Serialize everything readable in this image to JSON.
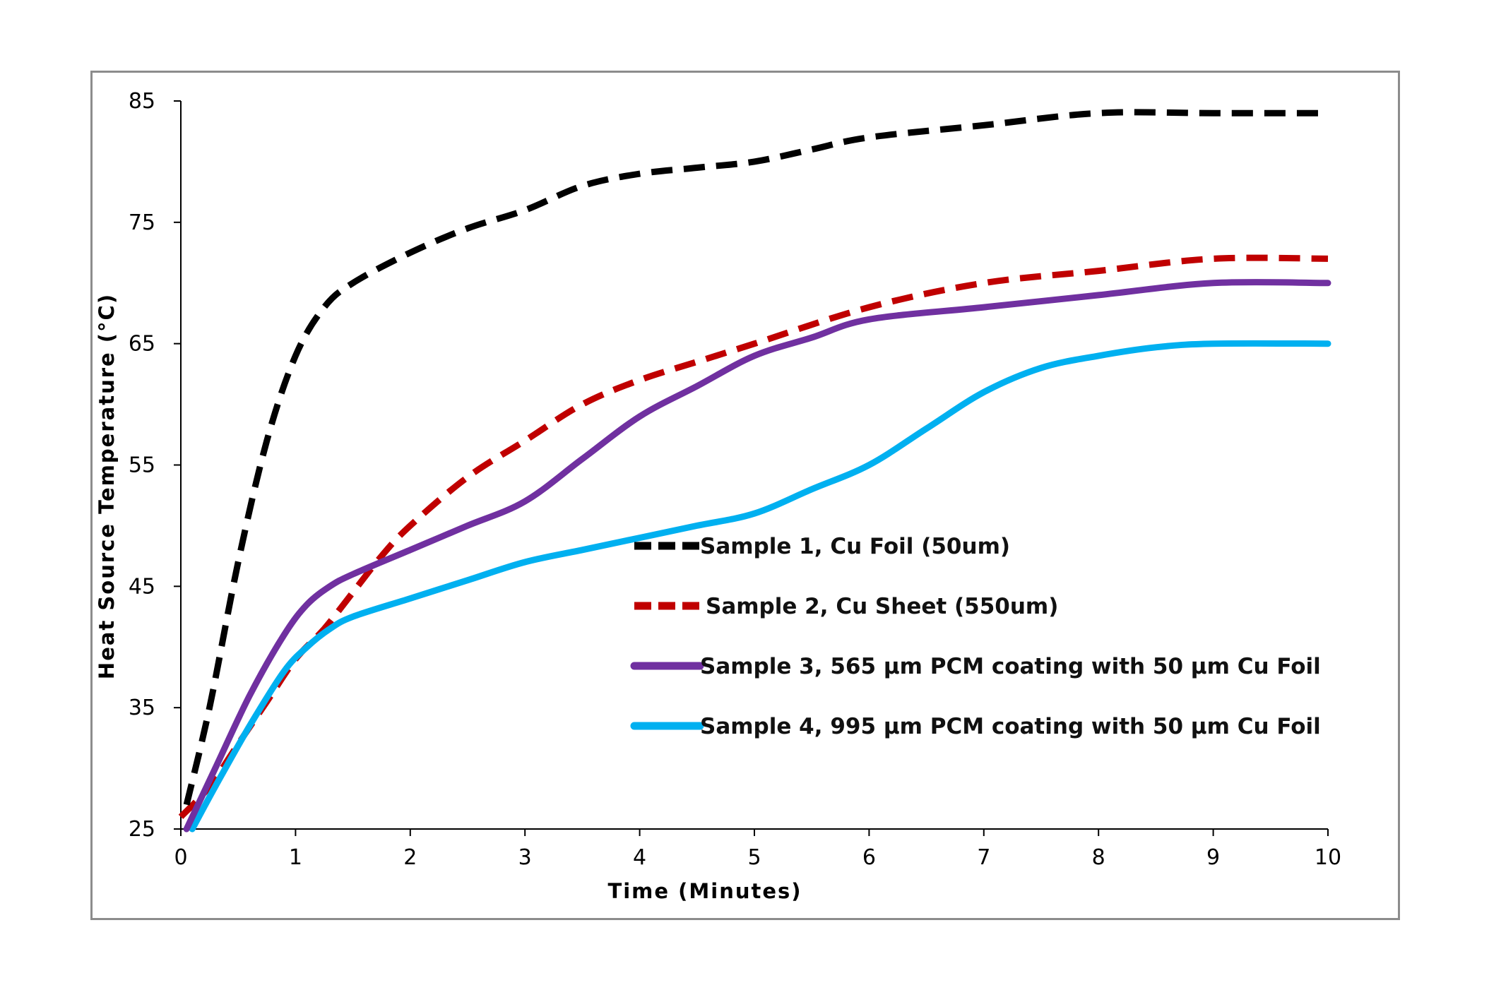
{
  "chart_data": {
    "type": "line",
    "xlabel": "Time (Minutes)",
    "ylabel": "Heat Source Temperature (°C)",
    "xlim": [
      0,
      10
    ],
    "ylim": [
      25,
      85
    ],
    "xticks": [
      "0",
      "1",
      "2",
      "3",
      "4",
      "5",
      "6",
      "7",
      "8",
      "9",
      "10"
    ],
    "yticks": [
      "25",
      "35",
      "45",
      "55",
      "65",
      "75",
      "85"
    ],
    "grid": false,
    "legend_position": "lower-right (inside plot)",
    "series": [
      {
        "name": "Sample 1, Cu Foil (50um)",
        "color": "#000000",
        "style": "dashed",
        "x": [
          0.05,
          0.25,
          0.5,
          0.75,
          1.0,
          1.25,
          1.5,
          2.0,
          2.5,
          3.0,
          3.5,
          4.0,
          4.5,
          5.0,
          5.5,
          6.0,
          7.0,
          8.0,
          9.0,
          10.0
        ],
        "y": [
          27,
          35,
          47,
          57,
          64,
          68,
          70,
          72.5,
          74.5,
          76,
          78,
          79,
          79.5,
          80,
          81,
          82,
          83,
          84,
          84,
          84
        ]
      },
      {
        "name": "Sample 2, Cu Sheet (550um)",
        "color": "#c00000",
        "style": "dashed",
        "x": [
          0.0,
          0.25,
          0.5,
          0.75,
          1.0,
          1.25,
          1.5,
          1.75,
          2.0,
          2.5,
          3.0,
          3.5,
          4.0,
          4.5,
          5.0,
          6.0,
          7.0,
          8.0,
          9.0,
          10.0
        ],
        "y": [
          26,
          28.5,
          32,
          35.5,
          39,
          41.5,
          44.5,
          47.5,
          50,
          54,
          57,
          60,
          62,
          63.5,
          65,
          68,
          70,
          71,
          72,
          72
        ]
      },
      {
        "name": "Sample 3, 565 µm PCM coating with 50 µm Cu Foil",
        "color": "#7030a0",
        "style": "solid",
        "x": [
          0.05,
          0.3,
          0.6,
          0.9,
          1.1,
          1.3,
          1.5,
          2.0,
          2.5,
          3.0,
          3.5,
          4.0,
          4.5,
          5.0,
          5.5,
          6.0,
          7.0,
          8.0,
          9.0,
          10.0
        ],
        "y": [
          25,
          30,
          36,
          41,
          43.5,
          45,
          46,
          48,
          50,
          52,
          55.5,
          59,
          61.5,
          64,
          65.5,
          67,
          68,
          69,
          70,
          70
        ]
      },
      {
        "name": "Sample 4, 995 µm PCM coating with 50 µm Cu Foil",
        "color": "#00b0f0",
        "style": "solid",
        "x": [
          0.1,
          0.3,
          0.6,
          0.9,
          1.1,
          1.3,
          1.5,
          2.0,
          2.5,
          3.0,
          3.5,
          4.0,
          4.5,
          5.0,
          5.5,
          6.0,
          6.5,
          7.0,
          7.5,
          8.0,
          8.5,
          9.0,
          10.0
        ],
        "y": [
          25,
          28.5,
          33.5,
          38,
          40,
          41.5,
          42.5,
          44,
          45.5,
          47,
          48,
          49,
          50,
          51,
          53,
          55,
          58,
          61,
          63,
          64,
          64.7,
          65,
          65
        ]
      }
    ]
  }
}
